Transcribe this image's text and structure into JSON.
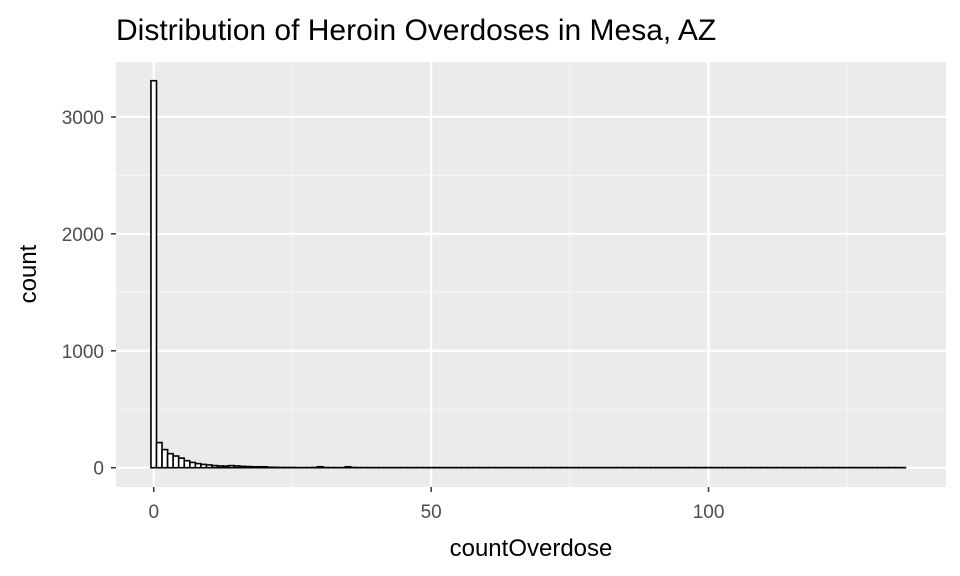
{
  "chart_data": {
    "type": "bar",
    "title": "Distribution of Heroin Overdoses in Mesa, AZ",
    "xlabel": "countOverdose",
    "ylabel": "count",
    "xlim": [
      -6.8,
      142.8
    ],
    "ylim": [
      -165,
      3470
    ],
    "x_ticks": [
      0,
      50,
      100
    ],
    "x_tick_labels": [
      "0",
      "50",
      "100"
    ],
    "x_minor": [
      25,
      75,
      125
    ],
    "y_ticks": [
      0,
      1000,
      2000,
      3000
    ],
    "y_tick_labels": [
      "0",
      "1000",
      "2000",
      "3000"
    ],
    "y_minor": [
      500,
      1500,
      2500
    ],
    "grid": true,
    "bin_width": 1,
    "bin_start": -0.5,
    "bin_counts": [
      3310,
      215,
      155,
      120,
      100,
      82,
      60,
      45,
      35,
      28,
      24,
      18,
      15,
      14,
      18,
      15,
      12,
      10,
      8,
      8,
      8,
      4,
      3,
      2,
      2,
      2,
      1,
      1,
      1,
      2,
      8,
      2,
      1,
      1,
      1,
      8,
      2,
      1,
      1,
      1,
      1,
      1,
      1,
      1,
      1,
      1,
      1,
      1,
      1,
      1,
      1,
      1,
      1,
      1,
      1,
      1,
      1,
      1,
      1,
      1,
      1,
      1,
      1,
      1,
      1,
      1,
      1,
      1,
      1,
      1,
      1,
      1,
      1,
      1,
      1,
      1,
      1,
      1,
      1,
      1,
      1,
      1,
      1,
      1,
      1,
      1,
      1,
      1,
      1,
      1,
      1,
      1,
      1,
      1,
      1,
      1,
      1,
      1,
      1,
      1,
      1,
      1,
      1,
      1,
      1,
      1,
      1,
      1,
      1,
      1,
      1,
      1,
      1,
      1,
      1,
      1,
      1,
      1,
      1,
      1,
      1,
      1,
      1,
      1,
      1,
      1,
      1,
      1,
      1,
      1,
      1,
      1,
      1,
      1,
      1,
      1
    ],
    "colors": {
      "panel": "#ebebeb",
      "grid_major": "#ffffff",
      "grid_minor": "#f5f5f5",
      "bar_fill": "#ffffff",
      "bar_stroke": "#000000",
      "tick": "#333333"
    }
  }
}
